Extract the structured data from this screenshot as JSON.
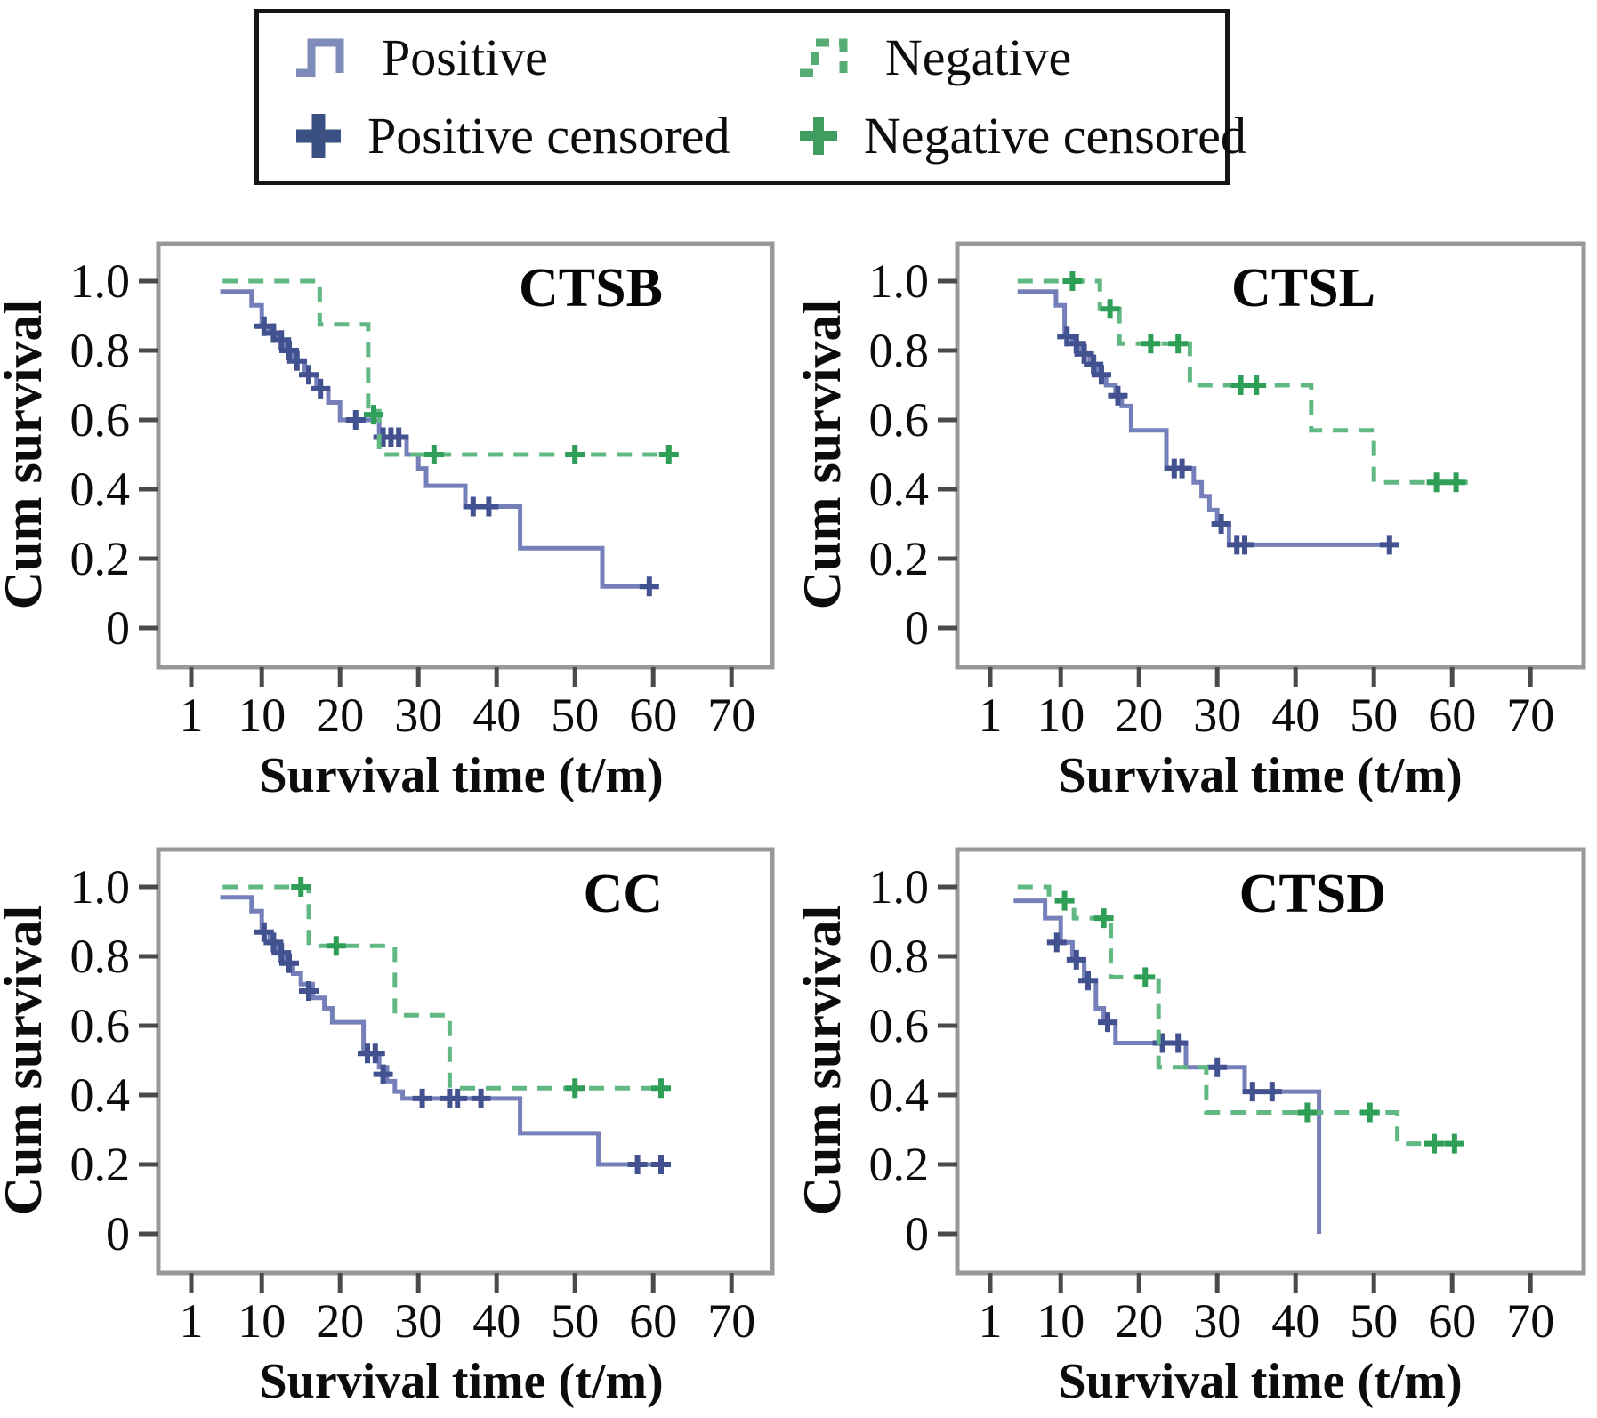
{
  "figure": {
    "background": "#ffffff"
  },
  "legend": {
    "border_color": "#161616",
    "items": [
      {
        "id": "positive",
        "label": "Positive",
        "symbol": "step-line",
        "color": "#7f8cba",
        "dashed": false
      },
      {
        "id": "negative",
        "label": "Negative",
        "symbol": "step-line-dashed",
        "color": "#57ab74",
        "dashed": true
      },
      {
        "id": "positive-censored",
        "label": "Positive censored",
        "symbol": "plus",
        "color": "#3a4f82",
        "dashed": false
      },
      {
        "id": "negative-censored",
        "label": "Negative censored",
        "symbol": "plus",
        "color": "#3f9e5f",
        "dashed": false
      }
    ]
  },
  "axes": {
    "x_label": "Survival time (t/m)",
    "y_label": "Cum survival",
    "x_tick_labels": [
      "1",
      "10",
      "20",
      "30",
      "40",
      "50",
      "60",
      "70"
    ],
    "y_tick_labels": [
      "1.0",
      "0.8",
      "0.6",
      "0.4",
      "0.2",
      "0"
    ],
    "frame_color": "#989898",
    "tick_color": "#4a4a4a",
    "text_color": "#0c0c0c"
  },
  "series_style": {
    "positive": {
      "line_color": "#7580bb",
      "censor_color": "#42518f",
      "dashed": false
    },
    "negative": {
      "line_color": "#62b883",
      "censor_color": "#2f9e57",
      "dashed": true
    }
  },
  "chart_data": [
    {
      "id": "ctsb",
      "type": "line",
      "variant": "kaplan-meier-step",
      "title": "CTSB",
      "xlabel": "Survival time (t/m)",
      "ylabel": "Cum survival",
      "x_ticks": [
        1,
        10,
        20,
        30,
        40,
        50,
        60,
        70
      ],
      "y_ticks": [
        1.0,
        0.8,
        0.6,
        0.4,
        0.2,
        0
      ],
      "xlim": [
        1,
        74
      ],
      "ylim": [
        0,
        1
      ],
      "grid": false,
      "legend_position": "top-shared",
      "series": [
        {
          "name": "Positive",
          "steps": [
            [
              4.7,
              0.97
            ],
            [
              8.7,
              0.93
            ],
            [
              10,
              0.87
            ],
            [
              11,
              0.85
            ],
            [
              12,
              0.83
            ],
            [
              13,
              0.8
            ],
            [
              14,
              0.77
            ],
            [
              15.5,
              0.73
            ],
            [
              17,
              0.69
            ],
            [
              18.5,
              0.65
            ],
            [
              20,
              0.6
            ],
            [
              25,
              0.55
            ],
            [
              28.5,
              0.5
            ],
            [
              30,
              0.46
            ],
            [
              31,
              0.41
            ],
            [
              36,
              0.35
            ],
            [
              43,
              0.23
            ],
            [
              53.5,
              0.12
            ]
          ],
          "end": 60,
          "censored": [
            [
              10.3,
              0.87
            ],
            [
              11.5,
              0.85
            ],
            [
              12.5,
              0.83
            ],
            [
              13.5,
              0.8
            ],
            [
              14.5,
              0.77
            ],
            [
              16,
              0.73
            ],
            [
              17.5,
              0.69
            ],
            [
              22,
              0.6
            ],
            [
              25.5,
              0.55
            ],
            [
              26.5,
              0.55
            ],
            [
              27.5,
              0.55
            ],
            [
              37,
              0.35
            ],
            [
              39,
              0.35
            ],
            [
              59.5,
              0.12
            ]
          ]
        },
        {
          "name": "Negative",
          "steps": [
            [
              5,
              1.0
            ],
            [
              17.4,
              0.875
            ],
            [
              23.6,
              0.625
            ],
            [
              25,
              0.5
            ]
          ],
          "end": 62.5,
          "censored": [
            [
              24.3,
              0.615
            ],
            [
              32,
              0.5
            ],
            [
              50,
              0.5
            ],
            [
              62,
              0.5
            ]
          ]
        }
      ]
    },
    {
      "id": "ctsl",
      "type": "line",
      "variant": "kaplan-meier-step",
      "title": "CTSL",
      "xlabel": "Survival time (t/m)",
      "ylabel": "Cum survival",
      "x_ticks": [
        1,
        10,
        20,
        30,
        40,
        50,
        60,
        70
      ],
      "y_ticks": [
        1.0,
        0.8,
        0.6,
        0.4,
        0.2,
        0
      ],
      "xlim": [
        1,
        74
      ],
      "ylim": [
        0,
        1
      ],
      "grid": false,
      "legend_position": "top-shared",
      "series": [
        {
          "name": "Positive",
          "steps": [
            [
              4.5,
              0.97
            ],
            [
              9.4,
              0.93
            ],
            [
              10.5,
              0.84
            ],
            [
              11.5,
              0.82
            ],
            [
              12.6,
              0.79
            ],
            [
              13.7,
              0.76
            ],
            [
              14.8,
              0.73
            ],
            [
              15.8,
              0.7
            ],
            [
              17,
              0.67
            ],
            [
              17.8,
              0.64
            ],
            [
              19,
              0.57
            ],
            [
              23.5,
              0.46
            ],
            [
              27,
              0.42
            ],
            [
              28,
              0.38
            ],
            [
              29,
              0.34
            ],
            [
              30,
              0.3
            ],
            [
              31.5,
              0.24
            ]
          ],
          "end": 52,
          "censored": [
            [
              10.8,
              0.84
            ],
            [
              12,
              0.82
            ],
            [
              13,
              0.79
            ],
            [
              14.2,
              0.76
            ],
            [
              15.2,
              0.73
            ],
            [
              17.3,
              0.67
            ],
            [
              24.5,
              0.46
            ],
            [
              25.5,
              0.46
            ],
            [
              30.5,
              0.3
            ],
            [
              32.5,
              0.24
            ],
            [
              33.5,
              0.24
            ],
            [
              52,
              0.24
            ]
          ]
        },
        {
          "name": "Negative",
          "steps": [
            [
              4.5,
              1.0
            ],
            [
              15,
              0.92
            ],
            [
              17.5,
              0.82
            ],
            [
              26.5,
              0.7
            ],
            [
              42,
              0.57
            ],
            [
              50,
              0.42
            ]
          ],
          "end": 62,
          "censored": [
            [
              11.5,
              1.0
            ],
            [
              16.3,
              0.92
            ],
            [
              21.5,
              0.82
            ],
            [
              25,
              0.82
            ],
            [
              33,
              0.7
            ],
            [
              35,
              0.7
            ],
            [
              58,
              0.42
            ],
            [
              60.5,
              0.42
            ]
          ]
        }
      ]
    },
    {
      "id": "cc",
      "type": "line",
      "variant": "kaplan-meier-step",
      "title": "CC",
      "xlabel": "Survival time (t/m)",
      "ylabel": "Cum survival",
      "x_ticks": [
        1,
        10,
        20,
        30,
        40,
        50,
        60,
        70
      ],
      "y_ticks": [
        1.0,
        0.8,
        0.6,
        0.4,
        0.2,
        0
      ],
      "xlim": [
        1,
        74
      ],
      "ylim": [
        0,
        1
      ],
      "grid": false,
      "legend_position": "top-shared",
      "series": [
        {
          "name": "Positive",
          "steps": [
            [
              4.7,
              0.97
            ],
            [
              8.7,
              0.93
            ],
            [
              10,
              0.87
            ],
            [
              11,
              0.84
            ],
            [
              12,
              0.81
            ],
            [
              13,
              0.78
            ],
            [
              14,
              0.75
            ],
            [
              15,
              0.72
            ],
            [
              16.5,
              0.68
            ],
            [
              18,
              0.65
            ],
            [
              19,
              0.61
            ],
            [
              23,
              0.52
            ],
            [
              25,
              0.48
            ],
            [
              26,
              0.44
            ],
            [
              27,
              0.41
            ],
            [
              28,
              0.39
            ],
            [
              43,
              0.29
            ],
            [
              53,
              0.2
            ]
          ],
          "end": 62,
          "censored": [
            [
              10.3,
              0.87
            ],
            [
              11.5,
              0.84
            ],
            [
              12.5,
              0.81
            ],
            [
              13.5,
              0.78
            ],
            [
              16,
              0.7
            ],
            [
              23.5,
              0.52
            ],
            [
              24.5,
              0.52
            ],
            [
              25.5,
              0.46
            ],
            [
              30.5,
              0.39
            ],
            [
              34,
              0.39
            ],
            [
              35,
              0.39
            ],
            [
              38,
              0.39
            ],
            [
              58,
              0.2
            ],
            [
              61,
              0.2
            ]
          ]
        },
        {
          "name": "Negative",
          "steps": [
            [
              5,
              1.0
            ],
            [
              16,
              0.83
            ],
            [
              27,
              0.63
            ],
            [
              34,
              0.42
            ]
          ],
          "end": 62,
          "censored": [
            [
              15,
              1.0
            ],
            [
              19.5,
              0.83
            ],
            [
              50,
              0.42
            ],
            [
              61,
              0.42
            ]
          ]
        }
      ]
    },
    {
      "id": "ctsd",
      "type": "line",
      "variant": "kaplan-meier-step",
      "title": "CTSD",
      "xlabel": "Survival time (t/m)",
      "ylabel": "Cum survival",
      "x_ticks": [
        1,
        10,
        20,
        30,
        40,
        50,
        60,
        70
      ],
      "y_ticks": [
        1.0,
        0.8,
        0.6,
        0.4,
        0.2,
        0
      ],
      "xlim": [
        1,
        74
      ],
      "ylim": [
        0,
        1
      ],
      "grid": false,
      "legend_position": "top-shared",
      "series": [
        {
          "name": "Positive",
          "steps": [
            [
              4,
              0.96
            ],
            [
              8,
              0.91
            ],
            [
              10,
              0.84
            ],
            [
              11.5,
              0.79
            ],
            [
              13,
              0.73
            ],
            [
              14.5,
              0.65
            ],
            [
              15.5,
              0.61
            ],
            [
              17,
              0.55
            ],
            [
              26,
              0.48
            ],
            [
              33.5,
              0.41
            ],
            [
              43,
              0.0
            ]
          ],
          "end": 43,
          "censored": [
            [
              9.5,
              0.84
            ],
            [
              12,
              0.79
            ],
            [
              13.5,
              0.73
            ],
            [
              16,
              0.61
            ],
            [
              23,
              0.55
            ],
            [
              25,
              0.55
            ],
            [
              30,
              0.48
            ],
            [
              34.5,
              0.41
            ],
            [
              37,
              0.41
            ]
          ]
        },
        {
          "name": "Negative",
          "steps": [
            [
              4.5,
              1.0
            ],
            [
              8.5,
              0.96
            ],
            [
              11.7,
              0.91
            ],
            [
              16.4,
              0.74
            ],
            [
              22.5,
              0.48
            ],
            [
              28.6,
              0.35
            ],
            [
              53,
              0.26
            ]
          ],
          "end": 61.5,
          "censored": [
            [
              10.5,
              0.96
            ],
            [
              15.5,
              0.91
            ],
            [
              20.8,
              0.74
            ],
            [
              41.5,
              0.35
            ],
            [
              49.5,
              0.35
            ],
            [
              57.7,
              0.26
            ],
            [
              60.3,
              0.26
            ]
          ]
        }
      ]
    }
  ]
}
